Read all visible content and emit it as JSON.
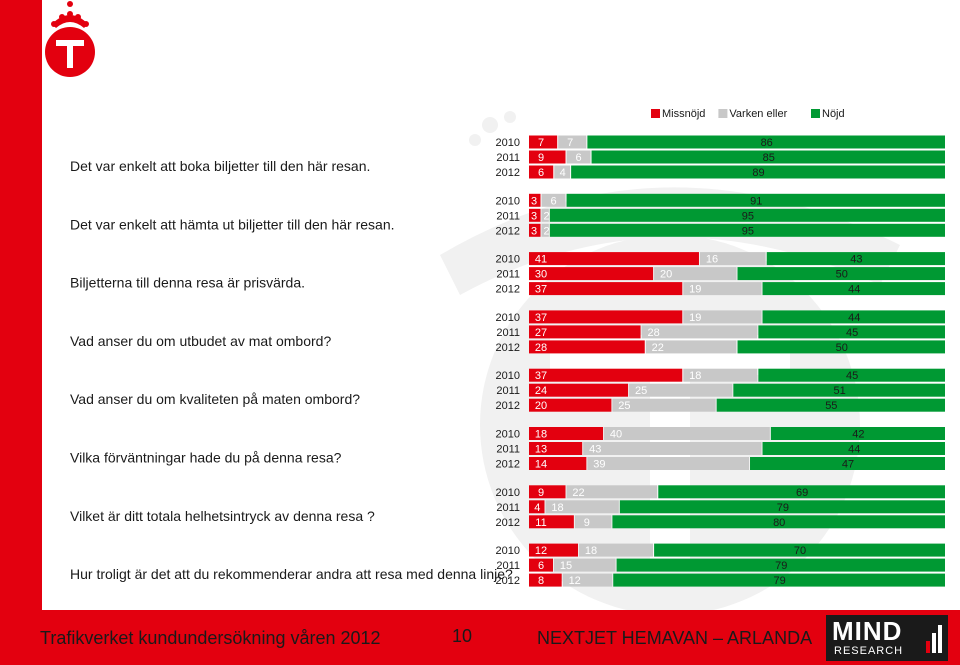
{
  "chart_data": {
    "type": "bar",
    "stacked": "horizontal-100",
    "legend": {
      "placement": "top-right",
      "entries": [
        "Missnöjd",
        "Varken eller",
        "Nöjd"
      ]
    },
    "colors": {
      "Missnöjd": "#e3000f",
      "Varken eller": "#c8c8c8",
      "Nöjd": "#009933"
    },
    "questions": [
      {
        "label": "Det var enkelt att boka biljetter till den här resan.",
        "rows": [
          {
            "year": "2010",
            "values": [
              7,
              7,
              86
            ]
          },
          {
            "year": "2011",
            "values": [
              9,
              6,
              85
            ]
          },
          {
            "year": "2012",
            "values": [
              6,
              4,
              89
            ]
          }
        ]
      },
      {
        "label": "Det var enkelt att hämta ut biljetter till den här resan.",
        "rows": [
          {
            "year": "2010",
            "values": [
              3,
              6,
              91
            ]
          },
          {
            "year": "2011",
            "values": [
              3,
              2,
              95
            ]
          },
          {
            "year": "2012",
            "values": [
              3,
              2,
              95
            ]
          }
        ]
      },
      {
        "label": "Biljetterna till denna resa är prisvärda.",
        "rows": [
          {
            "year": "2010",
            "values": [
              41,
              16,
              43
            ]
          },
          {
            "year": "2011",
            "values": [
              30,
              20,
              50
            ]
          },
          {
            "year": "2012",
            "values": [
              37,
              19,
              44
            ]
          }
        ]
      },
      {
        "label": "Vad anser du om utbudet av mat ombord?",
        "rows": [
          {
            "year": "2010",
            "values": [
              37,
              19,
              44
            ]
          },
          {
            "year": "2011",
            "values": [
              27,
              28,
              45
            ]
          },
          {
            "year": "2012",
            "values": [
              28,
              22,
              50
            ]
          }
        ]
      },
      {
        "label": "Vad anser du om kvaliteten på maten ombord?",
        "rows": [
          {
            "year": "2010",
            "values": [
              37,
              18,
              45
            ]
          },
          {
            "year": "2011",
            "values": [
              24,
              25,
              51
            ]
          },
          {
            "year": "2012",
            "values": [
              20,
              25,
              55
            ]
          }
        ]
      },
      {
        "label": "Vilka förväntningar hade du på denna resa?",
        "rows": [
          {
            "year": "2010",
            "values": [
              18,
              40,
              42
            ]
          },
          {
            "year": "2011",
            "values": [
              13,
              43,
              44
            ]
          },
          {
            "year": "2012",
            "values": [
              14,
              39,
              47
            ]
          }
        ]
      },
      {
        "label": "Vilket är ditt totala helhetsintryck av denna resa ?",
        "rows": [
          {
            "year": "2010",
            "values": [
              9,
              22,
              69
            ]
          },
          {
            "year": "2011",
            "values": [
              4,
              18,
              79
            ]
          },
          {
            "year": "2012",
            "values": [
              11,
              9,
              80
            ]
          }
        ]
      },
      {
        "label": "Hur troligt är det att du rekommenderar andra att resa med denna linje?",
        "rows": [
          {
            "year": "2010",
            "values": [
              12,
              18,
              70
            ]
          },
          {
            "year": "2011",
            "values": [
              6,
              15,
              79
            ]
          },
          {
            "year": "2012",
            "values": [
              8,
              12,
              79
            ]
          }
        ]
      }
    ]
  },
  "footer": {
    "left_text": "Trafikverket kundundersökning våren 2012",
    "page_number": "10",
    "route_text": "NEXTJET HEMAVAN – ARLANDA",
    "logo_text_top": "MIND",
    "logo_text_bottom": "RESEARCH"
  }
}
